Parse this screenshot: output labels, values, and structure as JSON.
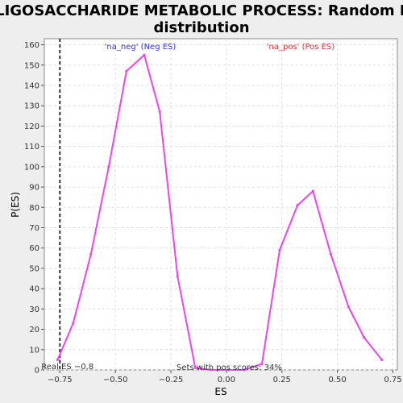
{
  "chart_data": {
    "type": "line",
    "title_line1": "OLIGOSACCHARIDE METABOLIC PROCESS: Random ES",
    "title_line2": "distribution",
    "xlabel": "ES",
    "ylabel": "P(ES)",
    "xlim": [
      -0.82,
      0.77
    ],
    "ylim": [
      0,
      163
    ],
    "x_ticks": [
      -0.75,
      -0.5,
      -0.25,
      0.0,
      0.25,
      0.5,
      0.75
    ],
    "x_tick_labels": [
      "−0.75",
      "−0.50",
      "−0.25",
      "0.00",
      "0.25",
      "0.50",
      "0.75"
    ],
    "y_ticks": [
      0,
      10,
      20,
      30,
      40,
      50,
      60,
      70,
      80,
      90,
      100,
      110,
      120,
      130,
      140,
      150,
      160
    ],
    "grid": true,
    "series": [
      {
        "color": "#ee44ee",
        "x": [
          -0.76,
          -0.69,
          -0.61,
          -0.53,
          -0.45,
          -0.37,
          -0.3,
          -0.22,
          -0.14,
          -0.07,
          0.01,
          0.08,
          0.16,
          0.24,
          0.32,
          0.39,
          0.47,
          0.55,
          0.62,
          0.7
        ],
        "y": [
          5,
          23,
          57,
          100,
          147,
          155,
          127,
          46,
          1,
          0,
          0,
          0,
          3,
          59,
          81,
          88,
          57,
          31,
          16,
          5
        ]
      }
    ],
    "real_es": {
      "x": -0.75,
      "label": "Real ES −0.8"
    },
    "legend_neg": {
      "text": "'na_neg' (Neg ES)",
      "color": "#3333dd"
    },
    "legend_pos": {
      "text": "'na_pos' (Pos ES)",
      "color": "#dd3333"
    },
    "annotation": "Sets with pos scores: 34%"
  }
}
